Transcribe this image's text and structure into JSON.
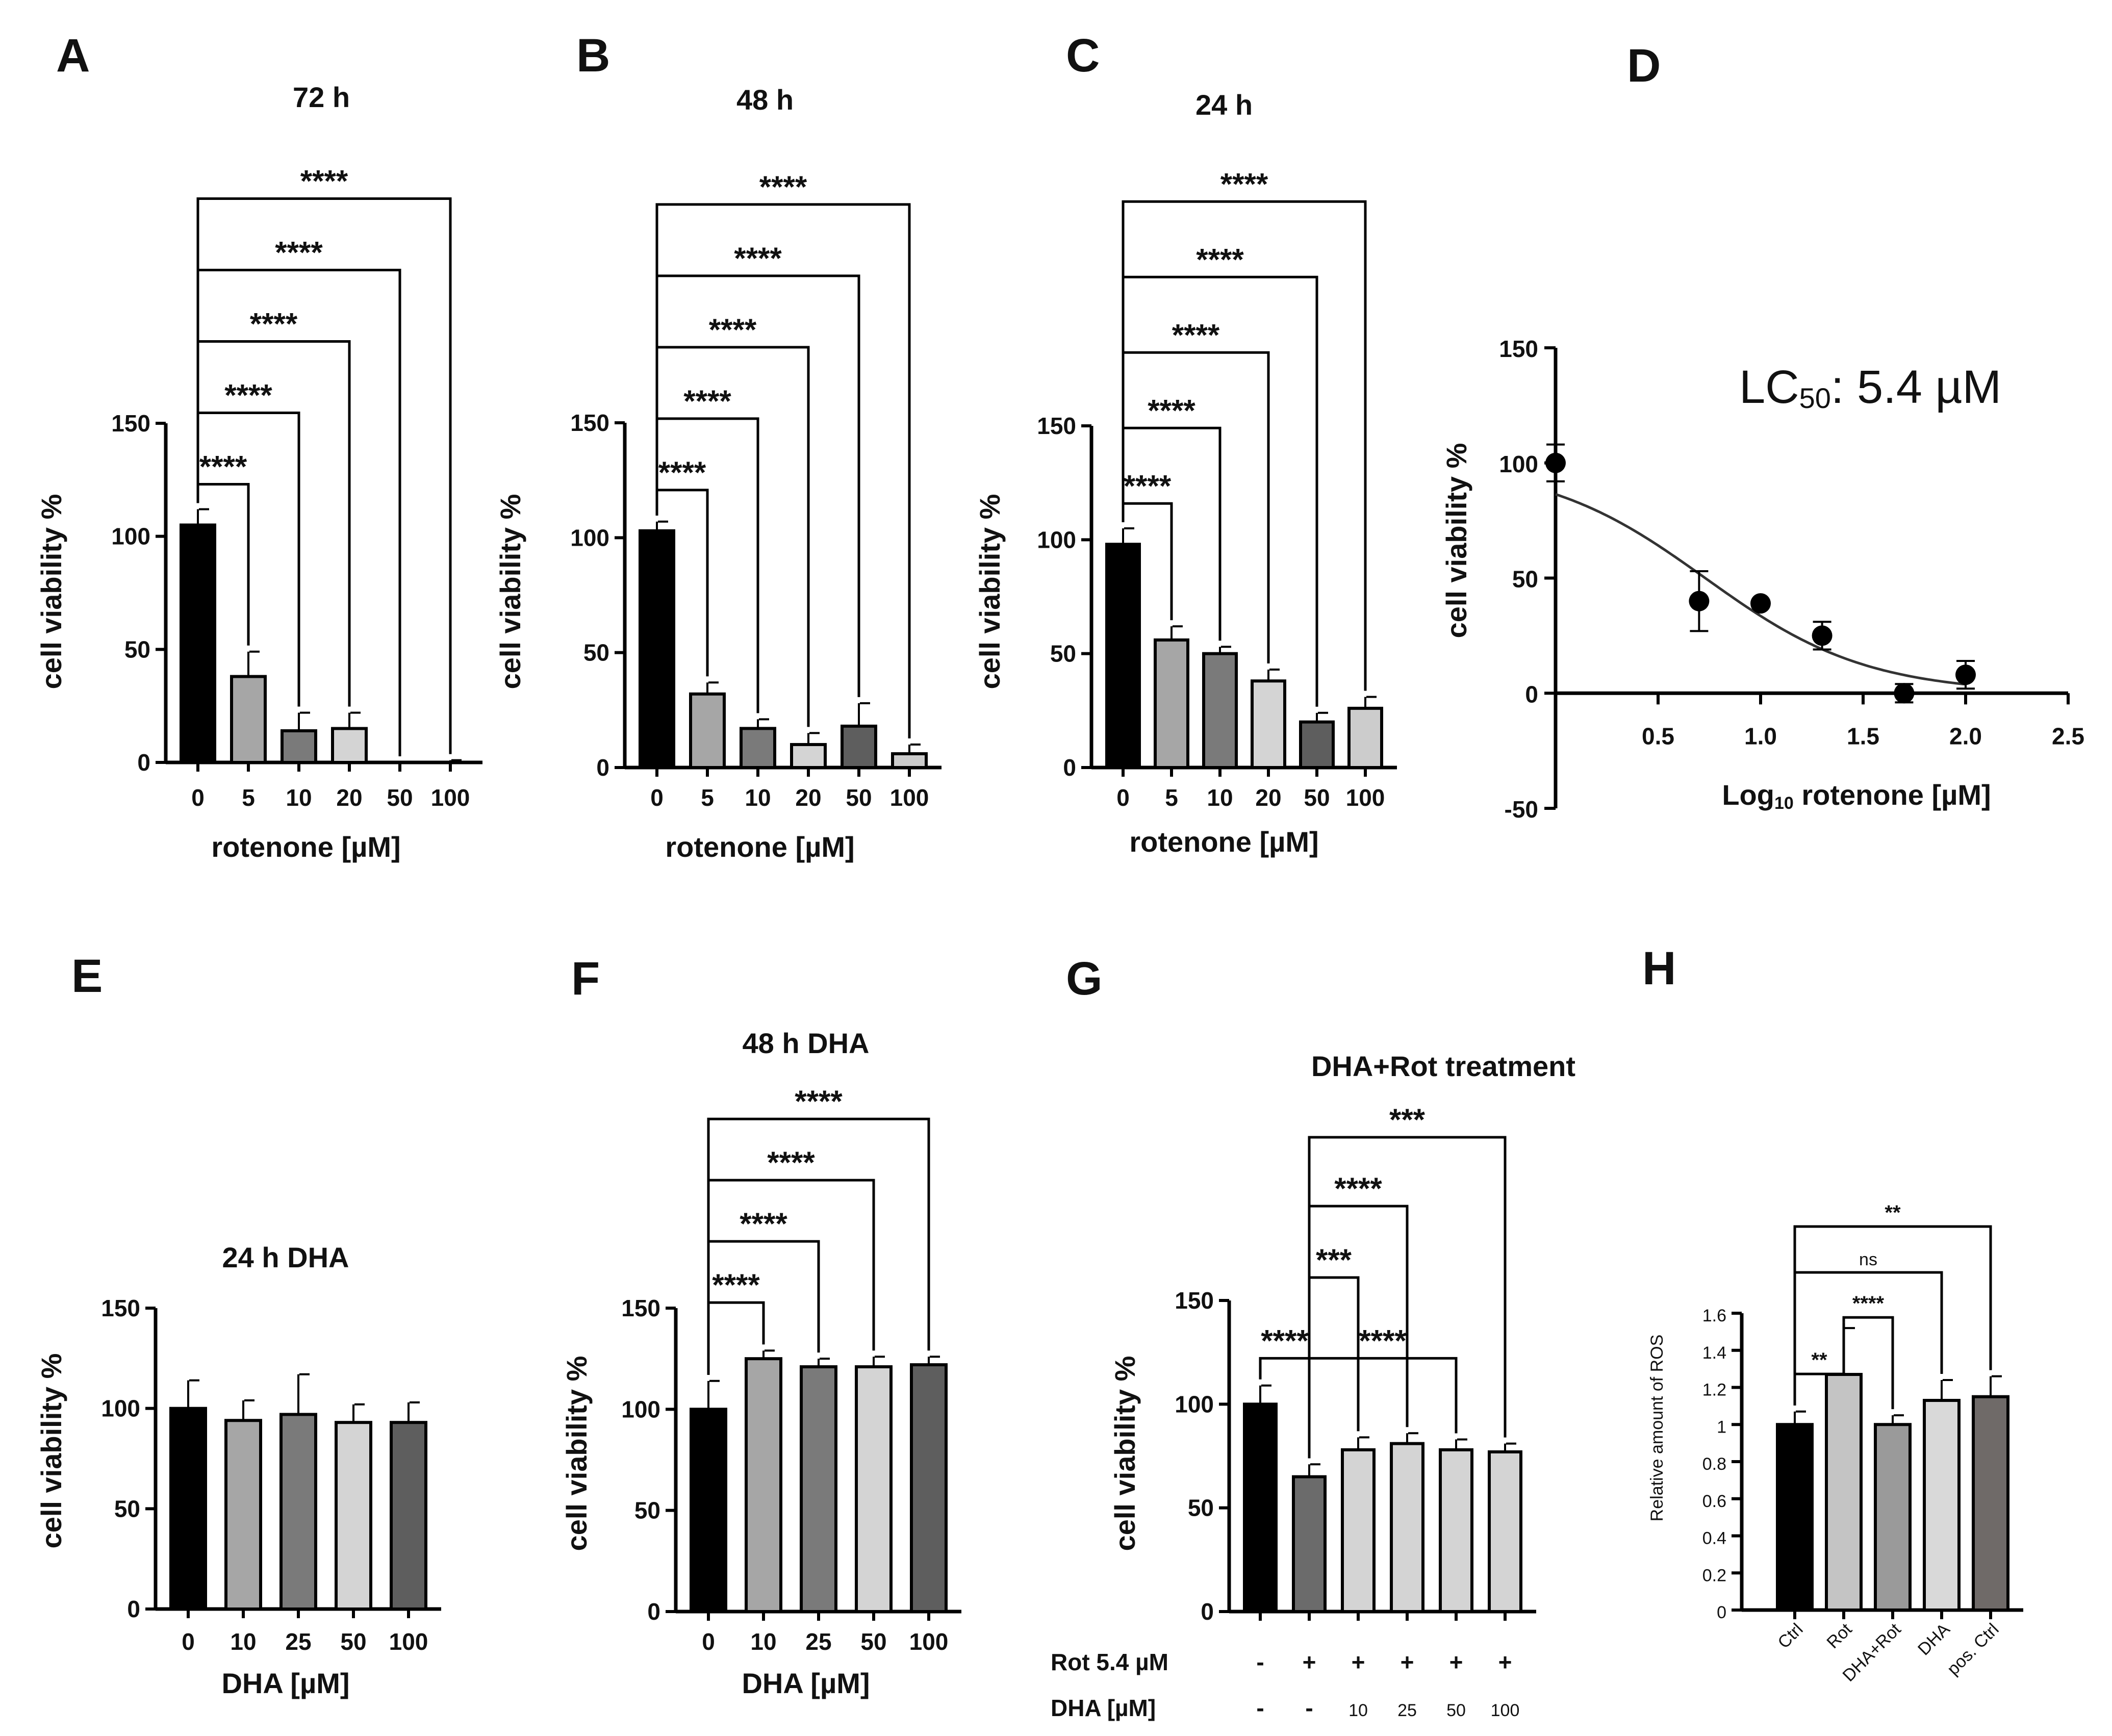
{
  "chart_data": [
    {
      "id": "A",
      "panel_label": "A",
      "type": "bar",
      "title": "72 h",
      "categories": [
        "0",
        "5",
        "10",
        "20",
        "50",
        "100"
      ],
      "values": [
        105,
        38,
        14,
        15,
        0,
        0
      ],
      "errors": [
        7,
        11,
        8,
        7,
        0,
        1
      ],
      "colors": [
        "#000000",
        "#a6a6a6",
        "#7a7a7a",
        "#d4d4d4",
        "#5e5e5e",
        "#cccccc"
      ],
      "xlabel": "rotenone [µM]",
      "ylabel": "cell viability %",
      "ylim": [
        0,
        150
      ],
      "yticks": [
        0,
        50,
        100,
        150
      ],
      "comparisons": [
        {
          "from": 0,
          "to": 1,
          "label": "****"
        },
        {
          "from": 0,
          "to": 2,
          "label": "****"
        },
        {
          "from": 0,
          "to": 3,
          "label": "****"
        },
        {
          "from": 0,
          "to": 4,
          "label": "****"
        },
        {
          "from": 0,
          "to": 5,
          "label": "****"
        }
      ]
    },
    {
      "id": "B",
      "panel_label": "B",
      "type": "bar",
      "title": "48 h",
      "categories": [
        "0",
        "5",
        "10",
        "20",
        "50",
        "100"
      ],
      "values": [
        103,
        32,
        17,
        10,
        18,
        6
      ],
      "errors": [
        4,
        5,
        4,
        5,
        10,
        4
      ],
      "colors": [
        "#000000",
        "#a6a6a6",
        "#7a7a7a",
        "#d4d4d4",
        "#5e5e5e",
        "#cccccc"
      ],
      "xlabel": "rotenone [µM]",
      "ylabel": "cell viability %",
      "ylim": [
        0,
        150
      ],
      "yticks": [
        0,
        50,
        100,
        150
      ],
      "comparisons": [
        {
          "from": 0,
          "to": 1,
          "label": "****"
        },
        {
          "from": 0,
          "to": 2,
          "label": "****"
        },
        {
          "from": 0,
          "to": 3,
          "label": "****"
        },
        {
          "from": 0,
          "to": 4,
          "label": "****"
        },
        {
          "from": 0,
          "to": 5,
          "label": "****"
        }
      ]
    },
    {
      "id": "C",
      "panel_label": "C",
      "type": "bar",
      "title": "24 h",
      "categories": [
        "0",
        "5",
        "10",
        "20",
        "50",
        "100"
      ],
      "values": [
        98,
        56,
        50,
        38,
        20,
        26
      ],
      "errors": [
        7,
        6,
        3,
        5,
        4,
        5
      ],
      "colors": [
        "#000000",
        "#a6a6a6",
        "#7a7a7a",
        "#d4d4d4",
        "#5e5e5e",
        "#cccccc"
      ],
      "xlabel": "rotenone [µM]",
      "ylabel": "cell viability %",
      "ylim": [
        0,
        150
      ],
      "yticks": [
        0,
        50,
        100,
        150
      ],
      "comparisons": [
        {
          "from": 0,
          "to": 1,
          "label": "****"
        },
        {
          "from": 0,
          "to": 2,
          "label": "****"
        },
        {
          "from": 0,
          "to": 3,
          "label": "****"
        },
        {
          "from": 0,
          "to": 4,
          "label": "****"
        },
        {
          "from": 0,
          "to": 5,
          "label": "****"
        }
      ]
    },
    {
      "id": "D",
      "panel_label": "D",
      "type": "scatter",
      "title": "",
      "annotation": "LC50: 5.4 µM",
      "annotation_main": "LC",
      "annotation_sub": "50",
      "annotation_rest": ": 5.4 µM",
      "xlabel": "Log10 rotenone [µM]",
      "xlabel_main": "Log",
      "xlabel_sub": "10",
      "xlabel_rest": " rotenone [µM]",
      "ylabel": "cell viability %",
      "x": [
        0,
        0.7,
        1.0,
        1.3,
        1.7,
        2.0
      ],
      "y": [
        100,
        40,
        39,
        25,
        0,
        8
      ],
      "errors": [
        8,
        13,
        0,
        6,
        4,
        6
      ],
      "fit": {
        "top": 100,
        "bottom": 0,
        "logLC50": 0.73,
        "hill": 1.1
      },
      "xlim": [
        0,
        2.5
      ],
      "xticks": [
        "0.5",
        "1.0",
        "1.5",
        "2.0",
        "2.5"
      ],
      "ylim": [
        -50,
        150
      ],
      "yticks": [
        "-50",
        "0",
        "50",
        "100",
        "150"
      ]
    },
    {
      "id": "E",
      "panel_label": "E",
      "type": "bar",
      "title": "24 h DHA",
      "categories": [
        "0",
        "10",
        "25",
        "50",
        "100"
      ],
      "values": [
        100,
        94,
        97,
        93,
        93
      ],
      "errors": [
        14,
        10,
        20,
        9,
        10
      ],
      "colors": [
        "#000000",
        "#a6a6a6",
        "#7a7a7a",
        "#d4d4d4",
        "#5e5e5e"
      ],
      "xlabel": "DHA [µM]",
      "ylabel": "cell viability %",
      "ylim": [
        0,
        150
      ],
      "yticks": [
        0,
        50,
        100,
        150
      ],
      "comparisons": []
    },
    {
      "id": "F",
      "panel_label": "F",
      "type": "bar",
      "title": "48 h DHA",
      "categories": [
        "0",
        "10",
        "25",
        "50",
        "100"
      ],
      "values": [
        100,
        125,
        121,
        121,
        122
      ],
      "errors": [
        14,
        4,
        4,
        5,
        4
      ],
      "colors": [
        "#000000",
        "#a6a6a6",
        "#7a7a7a",
        "#d4d4d4",
        "#5e5e5e"
      ],
      "xlabel": "DHA [µM]",
      "ylabel": "cell viability %",
      "ylim": [
        0,
        150
      ],
      "yticks": [
        0,
        50,
        100,
        150
      ],
      "comparisons": [
        {
          "from": 0,
          "to": 1,
          "label": "****"
        },
        {
          "from": 0,
          "to": 2,
          "label": "****"
        },
        {
          "from": 0,
          "to": 3,
          "label": "****"
        },
        {
          "from": 0,
          "to": 4,
          "label": "****"
        }
      ]
    },
    {
      "id": "G",
      "panel_label": "G",
      "type": "bar",
      "title": "DHA+Rot treatment",
      "categories": [
        "",
        "",
        "10",
        "25",
        "50",
        "100"
      ],
      "values": [
        100,
        65,
        78,
        81,
        78,
        77
      ],
      "errors": [
        9,
        6,
        6,
        5,
        5,
        4
      ],
      "colors": [
        "#000000",
        "#6b6b6b",
        "#d4d4d4",
        "#d4d4d4",
        "#d4d4d4",
        "#d4d4d4"
      ],
      "row_labels": [
        {
          "label": "Rot 5.4 µM",
          "values": [
            "-",
            "+",
            "+",
            "+",
            "+",
            "+"
          ]
        },
        {
          "label": "DHA [µM]",
          "values": [
            "-",
            "-",
            "10",
            "25",
            "50",
            "100"
          ]
        }
      ],
      "xlabel": "",
      "ylabel": "cell viability %",
      "ylim": [
        0,
        150
      ],
      "yticks": [
        0,
        50,
        100,
        150
      ],
      "comparisons": [
        {
          "from": 0,
          "to": 1,
          "label": "****"
        },
        {
          "from": 1,
          "to": 4,
          "label": "****"
        },
        {
          "from": 1,
          "to": 2,
          "label": "***"
        },
        {
          "from": 1,
          "to": 3,
          "label": "****"
        },
        {
          "from": 1,
          "to": 5,
          "label": "***"
        }
      ]
    },
    {
      "id": "H",
      "panel_label": "H",
      "type": "bar",
      "title": "",
      "categories": [
        "Ctrl",
        "Rot",
        "DHA+Rot",
        "DHA",
        "pos. Ctrl"
      ],
      "values": [
        1.0,
        1.27,
        1.0,
        1.13,
        1.15
      ],
      "errors": [
        0.07,
        0.25,
        0.05,
        0.11,
        0.11
      ],
      "colors": [
        "#000000",
        "#c4c4c4",
        "#9a9a9a",
        "#d9d9d9",
        "#6f6a68"
      ],
      "xlabel": "",
      "ylabel": "Relative amount of ROS",
      "ylim": [
        0,
        1.6
      ],
      "yticks": [
        "0",
        "0.2",
        "0.4",
        "0.6",
        "0.8",
        "1",
        "1.2",
        "1.4",
        "1.6"
      ],
      "comparisons": [
        {
          "from": 0,
          "to": 1,
          "label": "**"
        },
        {
          "from": 1,
          "to": 2,
          "label": "****"
        },
        {
          "from": 0,
          "to": 3,
          "label": "ns"
        },
        {
          "from": 0,
          "to": 4,
          "label": "**"
        }
      ]
    }
  ]
}
